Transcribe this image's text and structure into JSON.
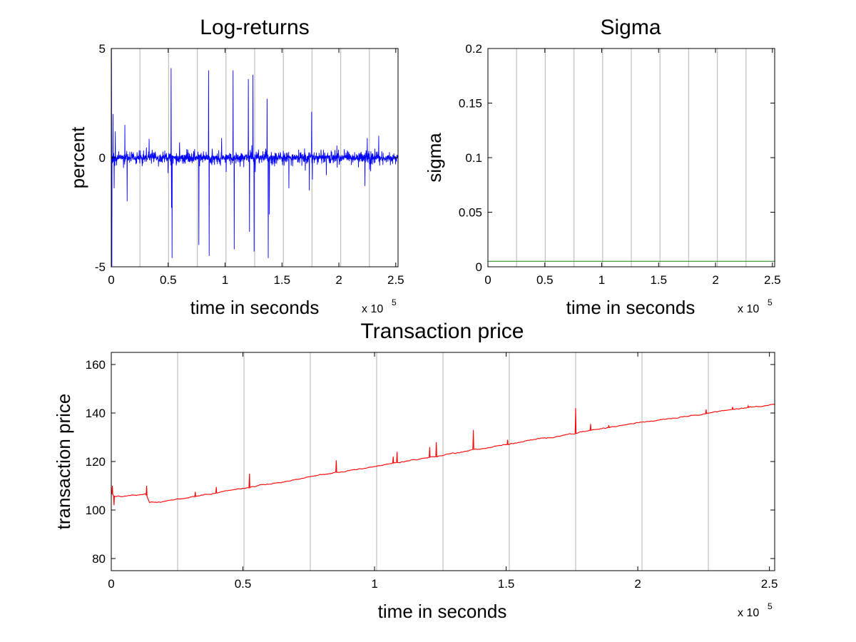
{
  "chart_data": [
    {
      "type": "line",
      "title": "Log-returns",
      "xlabel": "time in seconds",
      "ylabel": "percent",
      "x_multiplier": "x 10",
      "x_exponent": "5",
      "xlim": [
        0,
        252000
      ],
      "ylim": [
        -5,
        5
      ],
      "xticks": [
        0,
        0.5,
        1,
        1.5,
        2,
        2.5
      ],
      "xtick_labels": [
        "0",
        "0.5",
        "1",
        "1.5",
        "2",
        "2.5"
      ],
      "yticks": [
        -5,
        0,
        5
      ],
      "ytick_labels": [
        "-5",
        "0",
        "5"
      ],
      "vertical_gridlines_x": [
        0,
        25200,
        50400,
        75600,
        100800,
        126000,
        151200,
        176400,
        201600,
        226800,
        252000
      ],
      "grid": "vertical",
      "series": [
        {
          "color": "#0000ff",
          "style": "noise",
          "baseline": 0,
          "noise_amplitude": 0.3,
          "spikes": [
            {
              "x": 200,
              "y": 5.0
            },
            {
              "x": 500,
              "y": -5.0
            },
            {
              "x": 1500,
              "y": 2.0
            },
            {
              "x": 2500,
              "y": -1.4
            },
            {
              "x": 3500,
              "y": 1.2
            },
            {
              "x": 12000,
              "y": 1.5
            },
            {
              "x": 14000,
              "y": -2.0
            },
            {
              "x": 52500,
              "y": 4.1
            },
            {
              "x": 53000,
              "y": -2.3
            },
            {
              "x": 53500,
              "y": -4.6
            },
            {
              "x": 60000,
              "y": 0.7
            },
            {
              "x": 77000,
              "y": -4.0
            },
            {
              "x": 85500,
              "y": 4.0
            },
            {
              "x": 86000,
              "y": -4.5
            },
            {
              "x": 97000,
              "y": 0.9
            },
            {
              "x": 107000,
              "y": 4.0
            },
            {
              "x": 108000,
              "y": -4.2
            },
            {
              "x": 120500,
              "y": 3.6
            },
            {
              "x": 121500,
              "y": -3.4
            },
            {
              "x": 124500,
              "y": 3.8
            },
            {
              "x": 125500,
              "y": -4.3
            },
            {
              "x": 137000,
              "y": 2.7
            },
            {
              "x": 138000,
              "y": -4.6
            },
            {
              "x": 139000,
              "y": -2.6
            },
            {
              "x": 156000,
              "y": -1.4
            },
            {
              "x": 174000,
              "y": -1.5
            },
            {
              "x": 176000,
              "y": 2.1
            },
            {
              "x": 176800,
              "y": -1.0
            },
            {
              "x": 189000,
              "y": -0.8
            },
            {
              "x": 223000,
              "y": -1.3
            },
            {
              "x": 225000,
              "y": 0.9
            },
            {
              "x": 235000,
              "y": 1.0
            }
          ]
        }
      ]
    },
    {
      "type": "line",
      "title": "Sigma",
      "xlabel": "time in seconds",
      "ylabel": "sigma",
      "x_multiplier": "x 10",
      "x_exponent": "5",
      "xlim": [
        0,
        252000
      ],
      "ylim": [
        0,
        0.2
      ],
      "xticks": [
        0,
        0.5,
        1,
        1.5,
        2,
        2.5
      ],
      "xtick_labels": [
        "0",
        "0.5",
        "1",
        "1.5",
        "2",
        "2.5"
      ],
      "yticks": [
        0,
        0.05,
        0.1,
        0.15,
        0.2
      ],
      "ytick_labels": [
        "0",
        "0.05",
        "0.1",
        "0.15",
        "0.2"
      ],
      "vertical_gridlines_x": [
        0,
        25200,
        50400,
        75600,
        100800,
        126000,
        151200,
        176400,
        201600,
        226800,
        252000
      ],
      "grid": "vertical",
      "series": [
        {
          "color": "#4a9a4a",
          "style": "line",
          "x": [
            0,
            252000
          ],
          "y": [
            0.005,
            0.005
          ]
        }
      ]
    },
    {
      "type": "line",
      "title": "Transaction price",
      "xlabel": "time in seconds",
      "ylabel": "transaction price",
      "x_multiplier": "x 10",
      "x_exponent": "5",
      "xlim": [
        0,
        252000
      ],
      "ylim": [
        75,
        165
      ],
      "xticks": [
        0,
        0.5,
        1,
        1.5,
        2,
        2.5
      ],
      "xtick_labels": [
        "0",
        "0.5",
        "1",
        "1.5",
        "2",
        "2.5"
      ],
      "yticks": [
        80,
        100,
        120,
        140,
        160
      ],
      "ytick_labels": [
        "80",
        "100",
        "120",
        "140",
        "160"
      ],
      "vertical_gridlines_x": [
        0,
        25200,
        50400,
        75600,
        100800,
        126000,
        151200,
        176400,
        201600,
        226800,
        252000
      ],
      "grid": "vertical",
      "series": [
        {
          "color": "#ff0000",
          "style": "trend",
          "x": [
            0,
            1500,
            2500,
            13000,
            14500,
            20000,
            100000,
            150000,
            200000,
            252000
          ],
          "y": [
            107,
            105.5,
            105.5,
            106.5,
            103,
            103.5,
            118,
            127,
            136,
            143.8
          ],
          "spikes": [
            {
              "x": 500,
              "y": 110
            },
            {
              "x": 1000,
              "y": 102
            },
            {
              "x": 13500,
              "y": 110
            },
            {
              "x": 32000,
              "y": 107.5
            },
            {
              "x": 40000,
              "y": 109.5
            },
            {
              "x": 52500,
              "y": 115
            },
            {
              "x": 85500,
              "y": 120.5
            },
            {
              "x": 107000,
              "y": 122
            },
            {
              "x": 108500,
              "y": 124
            },
            {
              "x": 121000,
              "y": 126
            },
            {
              "x": 123500,
              "y": 128
            },
            {
              "x": 137500,
              "y": 133
            },
            {
              "x": 150500,
              "y": 129
            },
            {
              "x": 176500,
              "y": 142
            },
            {
              "x": 182000,
              "y": 135.5
            },
            {
              "x": 189000,
              "y": 135
            },
            {
              "x": 226000,
              "y": 141.5
            },
            {
              "x": 236000,
              "y": 142.5
            },
            {
              "x": 242000,
              "y": 143
            }
          ]
        }
      ]
    }
  ]
}
